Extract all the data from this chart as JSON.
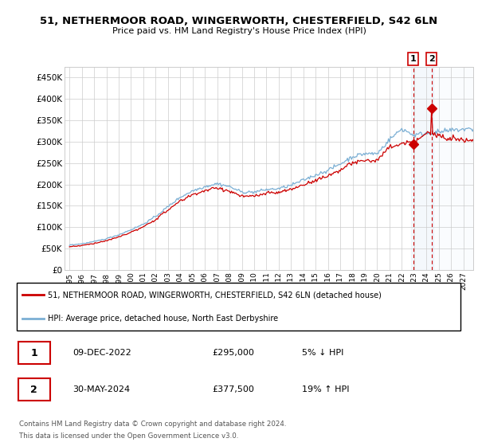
{
  "title_line1": "51, NETHERMOOR ROAD, WINGERWORTH, CHESTERFIELD, S42 6LN",
  "title_line2": "Price paid vs. HM Land Registry's House Price Index (HPI)",
  "hpi_color": "#7bafd4",
  "price_color": "#cc0000",
  "marker_color": "#cc0000",
  "background_color": "#ffffff",
  "grid_color": "#cccccc",
  "ylim": [
    0,
    475000
  ],
  "yticks": [
    0,
    50000,
    100000,
    150000,
    200000,
    250000,
    300000,
    350000,
    400000,
    450000
  ],
  "ytick_labels": [
    "£0",
    "£50K",
    "£100K",
    "£150K",
    "£200K",
    "£250K",
    "£300K",
    "£350K",
    "£400K",
    "£450K"
  ],
  "transaction1_date": "09-DEC-2022",
  "transaction1_price": "£295,000",
  "transaction1_hpi": "5% ↓ HPI",
  "transaction2_date": "30-MAY-2024",
  "transaction2_price": "£377,500",
  "transaction2_hpi": "19% ↑ HPI",
  "legend_line1": "51, NETHERMOOR ROAD, WINGERWORTH, CHESTERFIELD, S42 6LN (detached house)",
  "legend_line2": "HPI: Average price, detached house, North East Derbyshire",
  "footer1": "Contains HM Land Registry data © Crown copyright and database right 2024.",
  "footer2": "This data is licensed under the Open Government Licence v3.0.",
  "xtick_years": [
    "1995",
    "1996",
    "1997",
    "1998",
    "1999",
    "2000",
    "2001",
    "2002",
    "2003",
    "2004",
    "2005",
    "2006",
    "2007",
    "2008",
    "2009",
    "2010",
    "2011",
    "2012",
    "2013",
    "2014",
    "2015",
    "2016",
    "2017",
    "2018",
    "2019",
    "2020",
    "2021",
    "2022",
    "2023",
    "2024",
    "2025",
    "2026",
    "2027"
  ],
  "transaction1_x_year": 2022.92,
  "transaction1_y": 295000,
  "transaction2_x_year": 2024.42,
  "transaction2_y": 377500,
  "xlim_min": 1994.6,
  "xlim_max": 2027.8,
  "hatch_start": 2024.5,
  "shade_start": 2022.75,
  "shade_end": 2024.55
}
